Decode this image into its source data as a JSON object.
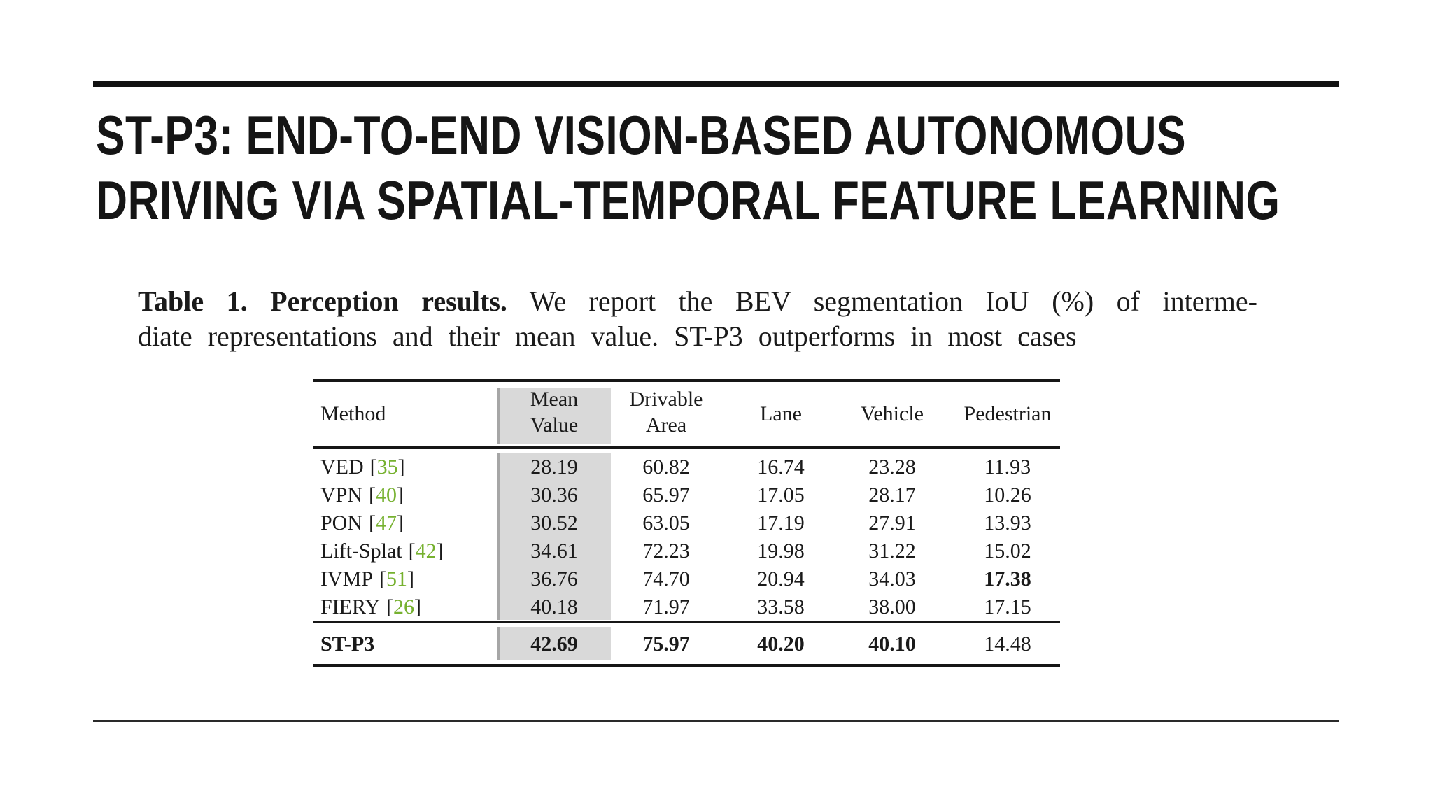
{
  "title": {
    "line1": "ST-P3: END-TO-END VISION-BASED AUTONOMOUS",
    "line2": "DRIVING VIA SPATIAL-TEMPORAL FEATURE LEARNING"
  },
  "caption": {
    "bold_label": "Table 1. Perception results.",
    "line1_rest": " We report the BEV segmentation IoU (%) of interme-",
    "line2": "diate representations and their mean value. ST-P3 outperforms in most cases"
  },
  "punct": {
    "lbracket": "[",
    "rbracket": "]"
  },
  "table": {
    "headers": {
      "method": "Method",
      "mean_1": "Mean",
      "mean_2": "Value",
      "drivable_1": "Drivable",
      "drivable_2": "Area",
      "lane": "Lane",
      "vehicle": "Vehicle",
      "pedestrian": "Pedestrian"
    },
    "rows": [
      {
        "method": "VED",
        "cite": "35",
        "mean": "28.19",
        "drivable": "60.82",
        "lane": "16.74",
        "vehicle": "23.28",
        "pedestrian": "11.93"
      },
      {
        "method": "VPN",
        "cite": "40",
        "mean": "30.36",
        "drivable": "65.97",
        "lane": "17.05",
        "vehicle": "28.17",
        "pedestrian": "10.26"
      },
      {
        "method": "PON",
        "cite": "47",
        "mean": "30.52",
        "drivable": "63.05",
        "lane": "17.19",
        "vehicle": "27.91",
        "pedestrian": "13.93"
      },
      {
        "method": "Lift-Splat",
        "cite": "42",
        "mean": "34.61",
        "drivable": "72.23",
        "lane": "19.98",
        "vehicle": "31.22",
        "pedestrian": "15.02"
      },
      {
        "method": "IVMP",
        "cite": "51",
        "mean": "36.76",
        "drivable": "74.70",
        "lane": "20.94",
        "vehicle": "34.03",
        "pedestrian": "17.38"
      },
      {
        "method": "FIERY",
        "cite": "26",
        "mean": "40.18",
        "drivable": "71.97",
        "lane": "33.58",
        "vehicle": "38.00",
        "pedestrian": "17.15"
      }
    ],
    "footer_row": {
      "method": "ST-P3",
      "mean": "42.69",
      "drivable": "75.97",
      "lane": "40.20",
      "vehicle": "40.10",
      "pedestrian": "14.48"
    }
  },
  "colors": {
    "citation_green": "#76b12f",
    "highlight_gray": "#d9d9d9",
    "rule_black": "#161616"
  }
}
